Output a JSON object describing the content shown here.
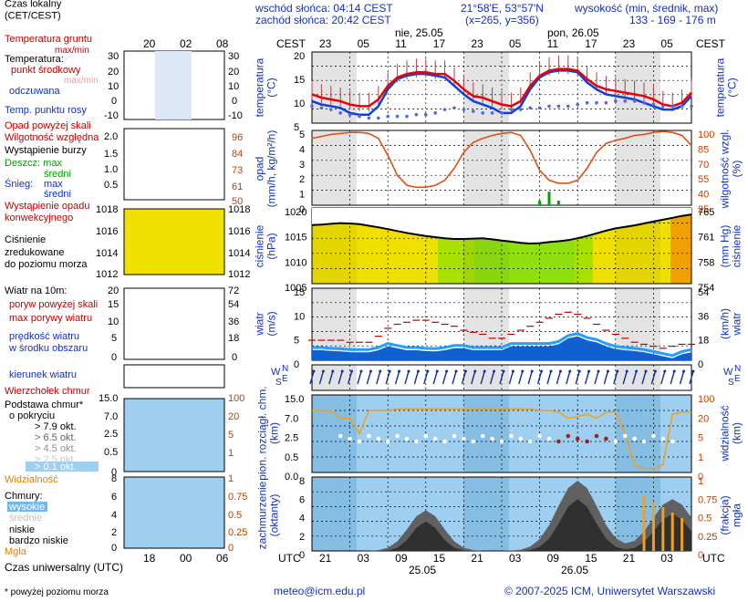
{
  "header": {
    "legend_time_title": "Czas lokalny\n(CET/CEST)",
    "sunrise": "wschód słońca: 04:14 CEST",
    "sunset": "zachód słońca: 20:42 CEST",
    "coords": "21°58'E, 53°57'N",
    "grid_pos": "(x=265,  y=356)",
    "height_label": "wysokość (min, średnik, max)",
    "height_values": "133 - 169 - 176 m",
    "tz_left": "CEST",
    "tz_right": "CEST",
    "day1": "nie, 25.05",
    "day2": "pon, 26.05",
    "top_hours": [
      "23",
      "05",
      "11",
      "17",
      "23",
      "05",
      "11",
      "17",
      "23",
      "05"
    ],
    "legend_top_hours": [
      "20",
      "02",
      "08"
    ]
  },
  "legend": {
    "temp_ground": "Temperatura gruntu",
    "temp_ground2": "max/min",
    "temperatura": "Temperatura:",
    "punkt": "punkt środkowy",
    "maxmin": "max/min",
    "odczuwana": "odczuwana",
    "temp_rosy": "Temp. punktu rosy",
    "opad_skala": "Opad powyżej skali",
    "wilgotnosc": "Wilgotność względna",
    "burza": "Wystąpienie burzy",
    "deszcz": "Deszcz: max",
    "sredni": "średni",
    "snieg": "Śnieg:",
    "max": "max",
    "sredni2": "średni",
    "wyst_opadu": "Wystąpienie opadu",
    "konwekcyjnego": "konwekcyjnego",
    "cisnienie": "Ciśnienie",
    "zredukowane": "zredukowane",
    "do_poziomu": "do poziomu morza",
    "wiatr10": "Wiatr na 10m:",
    "poryw_skala": "poryw powyżej skali",
    "max_porywy": "max porywy wiatru",
    "predkosc": "prędkość wiatru",
    "w_srodku": "w środku obszaru",
    "kierunek": "kierunek wiatru",
    "wierzcholek": "Wierzchołek chmur",
    "podstawa": "Podstawa chmur*",
    "o_pokryciu": "o pokryciu",
    "okt": [
      "> 7.9 okt.",
      "> 6.5 okt.",
      "> 4.5 okt.",
      "> 2.5 okt.",
      "> 0.1 okt."
    ],
    "widzialnosc": "Widzialność",
    "chmury": "Chmury:",
    "wysokie": "wysokie",
    "srednie": "średnie",
    "niskie": "niskie",
    "bardzo_niskie": "bardzo niskie",
    "mgla": "Mgła",
    "utc": "Czas uniwersalny (UTC)",
    "footnote": "* powyżej poziomu morza",
    "bottom_hours": [
      "18",
      "00",
      "06"
    ]
  },
  "axes": {
    "temp_label": "temperatura\n(°C)",
    "opad_label": "opad\n(mm/h, kg/m²/h)",
    "wilg_label": "wilgotność wzgl.\n(%)",
    "cisn_label": "ciśnienie\n(hPa)",
    "mmhg_label": "(mm Hg)\nciśnienie",
    "wiatr_label": "wiatr\n(m/s)",
    "kmh_label": "(km/h)\nwiatr",
    "chmury_label": "pion. rozciągł. chm.\n(km)",
    "widz_label": "widzialność\n(km)",
    "zachm_label": "zachmurzenie\n(oktanty)",
    "mgla_label": "(frakcja)\nmgła",
    "utc_left": "UTC",
    "utc_right": "UTC",
    "bottom_hours": [
      "21",
      "03",
      "09",
      "15",
      "21",
      "03",
      "09",
      "15",
      "21",
      "03"
    ],
    "date1": "25.05",
    "date2": "26.05",
    "temp_ticks": [
      "20",
      "15",
      "10",
      "5"
    ],
    "opad_ticks": [
      "5",
      "4",
      "3",
      "2",
      "1",
      "0"
    ],
    "wilg_ticks": [
      "100",
      "85",
      "70",
      "55",
      "40",
      "25"
    ],
    "cisn_ticks": [
      "1020",
      "1015",
      "1010",
      "1005"
    ],
    "mmhg_ticks": [
      "765",
      "761",
      "758",
      "754"
    ],
    "wiatr_ticks": [
      "15",
      "10",
      "5",
      "0"
    ],
    "kmh_ticks": [
      "54",
      "36",
      "18",
      "0"
    ],
    "chm_ticks": [
      "15.0",
      "7.0",
      "2.5",
      "0.5",
      "0.0"
    ],
    "widz_ticks": [
      "100",
      "20",
      "5",
      "1",
      "0"
    ],
    "okt_ticks": [
      "8",
      "6",
      "4",
      "2",
      "0"
    ],
    "frac_ticks": [
      "1",
      "0.75",
      "0.5",
      "0.25",
      "0"
    ],
    "legend_temp_ticks": [
      "30",
      "20",
      "10",
      "0",
      "-10"
    ],
    "legend_opad_ticks": [
      "2.0",
      "1.5",
      "1.0",
      "0.5"
    ],
    "legend_wilg_ticks": [
      "96",
      "84",
      "73",
      "61",
      "50"
    ],
    "legend_cisn_ticks": [
      "1018",
      "1016",
      "1014",
      "1012"
    ],
    "legend_wind_ticks": [
      "20",
      "15",
      "10",
      "5",
      "0"
    ],
    "legend_kmh_ticks": [
      "72",
      "54",
      "36",
      "18",
      "0"
    ],
    "legend_chm_ticks": [
      "15.0",
      "7.0",
      "2.5",
      "0.5",
      "0"
    ],
    "legend_widz_ticks": [
      "100",
      "20",
      "5",
      "1"
    ],
    "legend_okt_ticks": [
      "8",
      "6",
      "4",
      "2",
      "0"
    ],
    "legend_frac_ticks": [
      "1",
      "0.75",
      "0.5",
      "0.25",
      "0"
    ]
  },
  "footer": {
    "email": "meteo@icm.edu.pl",
    "copyright": "© 2007-2025 ICM, Uniwersytet Warszawski"
  },
  "chart_data": [
    {
      "type": "line",
      "title": "temperatura",
      "ylim": [
        2,
        23
      ],
      "series": [
        {
          "name": "punkt środkowy",
          "values": [
            10.5,
            9.5,
            9,
            8.5,
            7.5,
            7,
            7,
            9,
            13,
            15.5,
            16.5,
            17,
            17,
            16.5,
            16.5,
            14.5,
            12,
            10,
            9.5,
            8.5,
            7.5,
            7,
            8.5,
            13,
            16,
            17.5,
            18,
            18,
            17.5,
            15,
            13,
            12,
            11.5,
            11,
            10.5,
            10,
            9,
            7.5,
            7,
            8,
            11
          ]
        },
        {
          "name": "odczuwana",
          "values": [
            8.5,
            7.5,
            7,
            6.5,
            5,
            4.5,
            4.5,
            7,
            12,
            15,
            16,
            16.5,
            16.5,
            16,
            15.5,
            13,
            10.5,
            8.5,
            7.5,
            6.5,
            5,
            5,
            7,
            12,
            15.5,
            17,
            17.5,
            17.5,
            17,
            14,
            12,
            10.5,
            10,
            9.5,
            9,
            8,
            7,
            6,
            6,
            7,
            10
          ]
        },
        {
          "name": "Temp. punktu rosy",
          "values": [
            7,
            6.5,
            6,
            5,
            4.5,
            4,
            3.5,
            3.5,
            4,
            4,
            4,
            4.5,
            4.5,
            5,
            6,
            6.5,
            6,
            5.5,
            5,
            5,
            5,
            6,
            6,
            6.5,
            6.5,
            7,
            7,
            7,
            7.5,
            8,
            8,
            8,
            8.5,
            8.5,
            8.5,
            8,
            7.5,
            7,
            7,
            7,
            7
          ]
        }
      ]
    },
    {
      "type": "line",
      "title": "opad / wilgotność",
      "series": [
        {
          "name": "Wilgotność względna",
          "values": [
            92,
            94,
            96,
            97,
            98,
            98,
            97,
            92,
            75,
            55,
            45,
            43,
            43,
            45,
            50,
            62,
            78,
            88,
            92,
            95,
            97,
            98,
            95,
            80,
            60,
            50,
            47,
            47,
            50,
            62,
            78,
            87,
            90,
            92,
            95,
            96,
            98,
            99,
            98,
            95,
            85
          ]
        },
        {
          "name": "opad",
          "values": [
            0,
            0,
            0,
            0,
            0,
            0,
            0,
            0,
            0,
            0,
            0,
            0,
            0,
            0,
            0,
            0,
            0,
            0,
            0,
            0,
            0,
            0,
            0,
            0,
            0.1,
            0.3,
            0.1,
            0,
            0,
            0,
            0,
            0,
            0,
            0,
            0,
            0,
            0,
            0,
            0,
            0,
            0
          ]
        }
      ]
    },
    {
      "type": "line",
      "title": "ciśnienie",
      "ylim": [
        1001,
        1021
      ],
      "series": [
        {
          "name": "Ciśnienie",
          "values": [
            1016.5,
            1016.6,
            1016.8,
            1017,
            1016.9,
            1016.7,
            1016.3,
            1015.9,
            1015.4,
            1014.9,
            1014.4,
            1014,
            1013.6,
            1013.3,
            1013,
            1012.8,
            1012.8,
            1012.9,
            1013,
            1012.7,
            1012.4,
            1012.1,
            1011.8,
            1011.6,
            1011.7,
            1012,
            1012.2,
            1012.5,
            1013,
            1013.6,
            1014.3,
            1015,
            1015.6,
            1016,
            1016.4,
            1016.9,
            1017.4,
            1017.9,
            1018.4,
            1018.9,
            1019.3
          ]
        }
      ]
    },
    {
      "type": "line",
      "title": "wiatr",
      "ylim": [
        0,
        18
      ],
      "series": [
        {
          "name": "max porywy wiatru",
          "values": [
            5,
            5,
            5,
            5,
            4.5,
            4.5,
            4.5,
            6,
            8,
            9,
            9.5,
            10,
            10,
            9.5,
            9,
            8.5,
            7.5,
            7,
            6.5,
            5.5,
            5.5,
            6.5,
            7.5,
            8.5,
            9.5,
            10.5,
            11.5,
            12,
            11.5,
            10.5,
            9,
            7.5,
            6.5,
            5.5,
            4.5,
            4,
            3.5,
            3,
            3.5,
            4,
            4
          ]
        },
        {
          "name": "prędkość wiatru",
          "values": [
            2.5,
            2.5,
            2.3,
            2.2,
            2,
            2,
            2,
            2.5,
            3.5,
            3,
            2.5,
            2.5,
            2.3,
            2.2,
            2.5,
            3,
            3,
            2.5,
            2.5,
            2.5,
            2.5,
            3.5,
            3.5,
            3.5,
            3.5,
            3.5,
            4,
            5.5,
            6,
            5,
            4.5,
            3.5,
            2.8,
            2.5,
            2.3,
            2,
            1.5,
            1,
            0.5,
            1.5,
            2
          ]
        }
      ]
    }
  ],
  "colors": {
    "temp": "#e8000a",
    "odczuwana": "#1040d8",
    "rosa": "#5068e0",
    "wilg": "#e05010",
    "night": "#d8d8d8",
    "vis": "#f0a020"
  }
}
